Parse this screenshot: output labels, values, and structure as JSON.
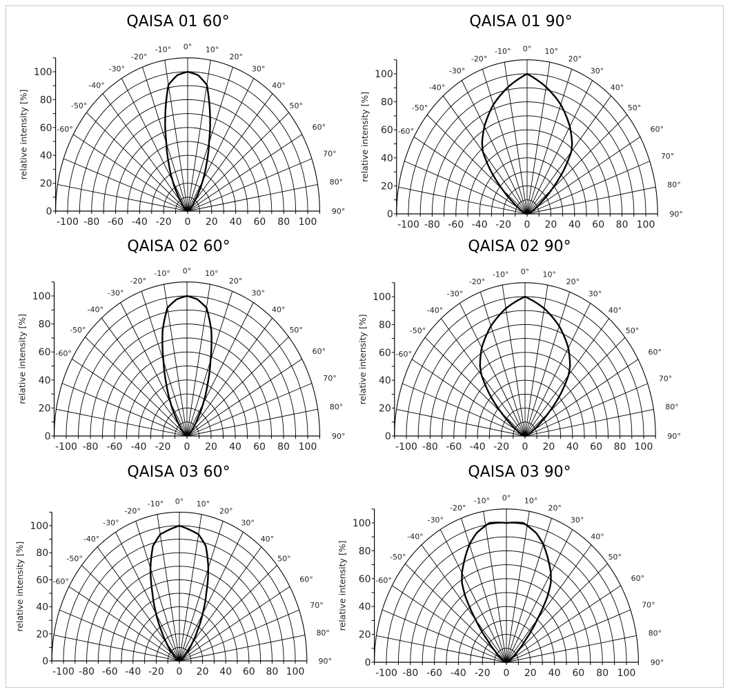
{
  "chart_data": [
    {
      "type": "polar",
      "title": "QAISA 01 60°",
      "ylabel": "relative intensity [%]",
      "angles": [
        0,
        5,
        10,
        15,
        20,
        25,
        30,
        35,
        40,
        50,
        60,
        90
      ],
      "intensity": [
        100,
        98,
        92,
        72,
        52,
        37,
        25,
        15,
        8,
        3,
        1,
        0
      ],
      "symmetric": true,
      "rlim": [
        0,
        110
      ],
      "grid": true
    },
    {
      "type": "polar",
      "title": "QAISA 01 90°",
      "ylabel": "relative intensity [%]",
      "angles": [
        0,
        10,
        20,
        30,
        37,
        40,
        45,
        50,
        55,
        60,
        70,
        90
      ],
      "intensity": [
        100,
        92,
        83,
        72,
        63,
        58,
        43,
        27,
        15,
        8,
        2,
        0
      ],
      "symmetric": true,
      "rlim": [
        0,
        110
      ],
      "grid": true
    },
    {
      "type": "polar",
      "title": "QAISA 02 60°",
      "ylabel": "relative intensity [%]",
      "angles": [
        0,
        5,
        10,
        15,
        20,
        25,
        30,
        35,
        40,
        50,
        60,
        90
      ],
      "intensity": [
        100,
        98,
        93,
        78,
        57,
        40,
        27,
        16,
        9,
        3,
        1,
        0
      ],
      "symmetric": true,
      "rlim": [
        0,
        110
      ],
      "grid": true
    },
    {
      "type": "polar",
      "title": "QAISA 02 90°",
      "ylabel": "relative intensity [%]",
      "angles": [
        0,
        10,
        20,
        30,
        37,
        40,
        45,
        50,
        55,
        60,
        70,
        90
      ],
      "intensity": [
        100,
        93,
        84,
        73,
        63,
        57,
        42,
        26,
        14,
        7,
        2,
        0
      ],
      "symmetric": true,
      "rlim": [
        0,
        110
      ],
      "grid": true
    },
    {
      "type": "polar",
      "title": "QAISA 03 60°",
      "ylabel": "relative intensity [%]",
      "angles": [
        0,
        10,
        15,
        20,
        25,
        30,
        35,
        40,
        50,
        60,
        90
      ],
      "intensity": [
        100,
        95,
        88,
        73,
        55,
        40,
        27,
        17,
        6,
        2,
        0
      ],
      "symmetric": true,
      "rlim": [
        0,
        110
      ],
      "grid": true
    },
    {
      "type": "polar",
      "title": "QAISA 03 90°",
      "ylabel": "relative intensity [%]",
      "angles": [
        0,
        8,
        15,
        20,
        25,
        30,
        33,
        36,
        40,
        45,
        50,
        60,
        90
      ],
      "intensity": [
        100,
        101,
        96,
        90,
        82,
        74,
        68,
        58,
        40,
        22,
        12,
        4,
        0
      ],
      "symmetric": true,
      "rlim": [
        0,
        110
      ],
      "grid": true
    }
  ],
  "axes": {
    "y_tick_labels": [
      "0",
      "20",
      "40",
      "60",
      "80",
      "100"
    ],
    "x_tick_labels": [
      "-100",
      "-80",
      "-60",
      "-40",
      "-20",
      "0",
      "20",
      "40",
      "60",
      "80",
      "100"
    ],
    "angle_labels": [
      "-60°",
      "-50°",
      "-40°",
      "-30°",
      "-20°",
      "-10°",
      "0°",
      "10°",
      "20°",
      "30°",
      "40°",
      "50°",
      "60°",
      "70°",
      "80°",
      "90°"
    ]
  }
}
